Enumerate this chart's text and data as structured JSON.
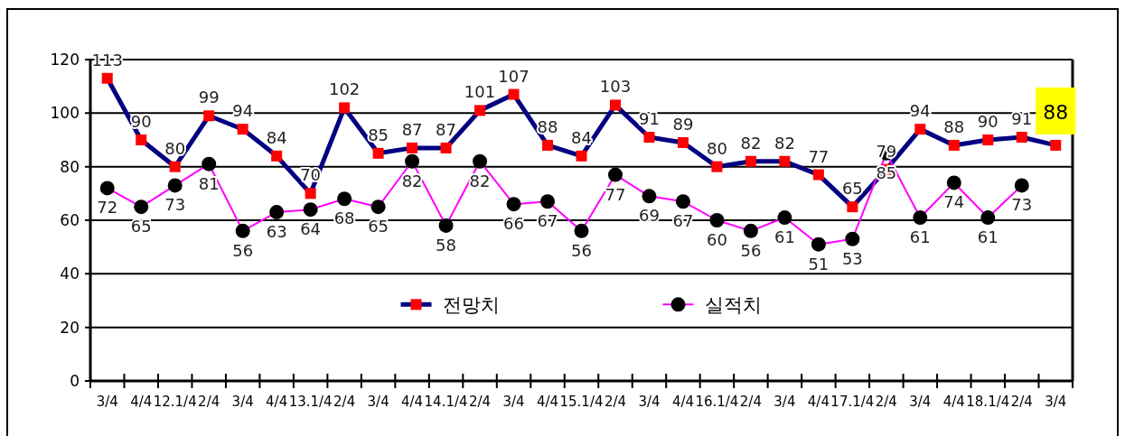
{
  "chart_data": {
    "type": "line",
    "categories": [
      "3/4",
      "4/4",
      "12.1/4",
      "2/4",
      "3/4",
      "4/4",
      "13.1/4",
      "2/4",
      "3/4",
      "4/4",
      "14.1/4",
      "2/4",
      "3/4",
      "4/4",
      "15.1/4",
      "2/4",
      "3/4",
      "4/4",
      "16.1/4",
      "2/4",
      "3/4",
      "4/4",
      "17.1/4",
      "2/4",
      "3/4",
      "4/4",
      "18.1/4",
      "2/4",
      "3/4"
    ],
    "series": [
      {
        "name": "전망치",
        "color": "#000080",
        "marker": "square",
        "values": [
          113,
          90,
          80,
          99,
          94,
          84,
          70,
          102,
          85,
          87,
          87,
          101,
          107,
          88,
          84,
          103,
          91,
          89,
          80,
          82,
          82,
          77,
          65,
          79,
          94,
          88,
          90,
          91,
          88
        ]
      },
      {
        "name": "실적치",
        "color": "#ff00ff",
        "marker": "circle",
        "values": [
          72,
          65,
          73,
          81,
          56,
          63,
          64,
          68,
          65,
          82,
          58,
          82,
          66,
          67,
          56,
          77,
          69,
          67,
          60,
          56,
          61,
          51,
          53,
          85,
          61,
          74,
          61,
          73,
          null
        ]
      }
    ],
    "ylim": [
      0,
      120
    ],
    "yticks": [
      0,
      20,
      40,
      60,
      80,
      100,
      120
    ],
    "grid": "y",
    "legend": "bottom",
    "data_labels": true
  }
}
